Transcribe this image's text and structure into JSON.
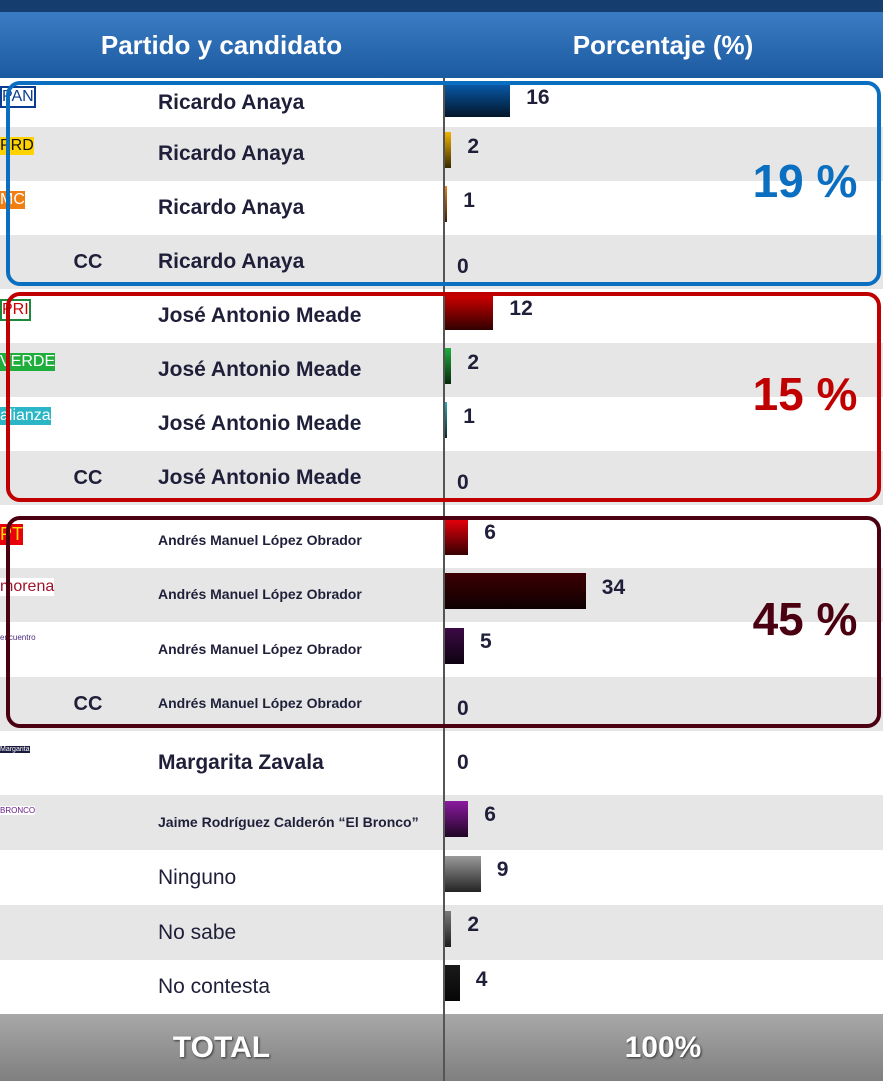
{
  "table": {
    "headers": [
      "Partido y candidato",
      "Porcentaje (%)"
    ],
    "sections": [
      {
        "label": "19 %",
        "color": "#0b6fc1",
        "rows": [
          {
            "party": "PAN",
            "candidate": "Ricardo Anaya",
            "value": 16,
            "color": "#0a5fb4"
          },
          {
            "party": "PRD",
            "candidate": "Ricardo Anaya",
            "value": 2,
            "color": "#f2b400"
          },
          {
            "party": "MC",
            "candidate": "Ricardo Anaya",
            "value": 1,
            "color": "#f07f13"
          },
          {
            "party": "CC",
            "candidate": "Ricardo Anaya",
            "value": 0,
            "color": "#0a5fb4"
          }
        ]
      },
      {
        "label": "15 %",
        "color": "#c00000",
        "rows": [
          {
            "party": "PRI",
            "candidate": "José Antonio Meade",
            "value": 12,
            "color": "#d40000"
          },
          {
            "party": "VERDE",
            "candidate": "José Antonio Meade",
            "value": 2,
            "color": "#1fae3c"
          },
          {
            "party": "alianza",
            "candidate": "José Antonio Meade",
            "value": 1,
            "color": "#2aa8b8"
          },
          {
            "party": "CC",
            "candidate": "José Antonio Meade",
            "value": 0,
            "color": "#d40000"
          }
        ]
      },
      {
        "label": "45 %",
        "color": "#4a0010",
        "rows": [
          {
            "party": "PT",
            "candidate": "Andrés Manuel López Obrador",
            "value": 6,
            "color": "#e8000b"
          },
          {
            "party": "morena",
            "candidate": "Andrés Manuel López Obrador",
            "value": 34,
            "color": "#3d0004"
          },
          {
            "party": "encuentro",
            "candidate": "Andrés Manuel López Obrador",
            "value": 5,
            "color": "#3b0a45"
          },
          {
            "party": "CC",
            "candidate": "Andrés Manuel López Obrador",
            "value": 0,
            "color": "#3d0004"
          }
        ]
      },
      {
        "rows": [
          {
            "party": "Margarita",
            "candidate": "Margarita Zavala",
            "value": 0,
            "color": "#1a1a40"
          },
          {
            "party": "BRONCO",
            "candidate": "Jaime Rodríguez Calderón “El Bronco”",
            "value": 6,
            "color": "#8b1aa0"
          },
          {
            "candidate": "Ninguno",
            "value": 9,
            "color": "#9a9a9a"
          },
          {
            "candidate": "No sabe",
            "value": 2,
            "color": "#7a7a7a"
          },
          {
            "candidate": "No contesta",
            "value": 4,
            "color": "#1a1a1a"
          }
        ]
      }
    ],
    "total": {
      "label": "TOTAL",
      "value": "100%"
    }
  }
}
